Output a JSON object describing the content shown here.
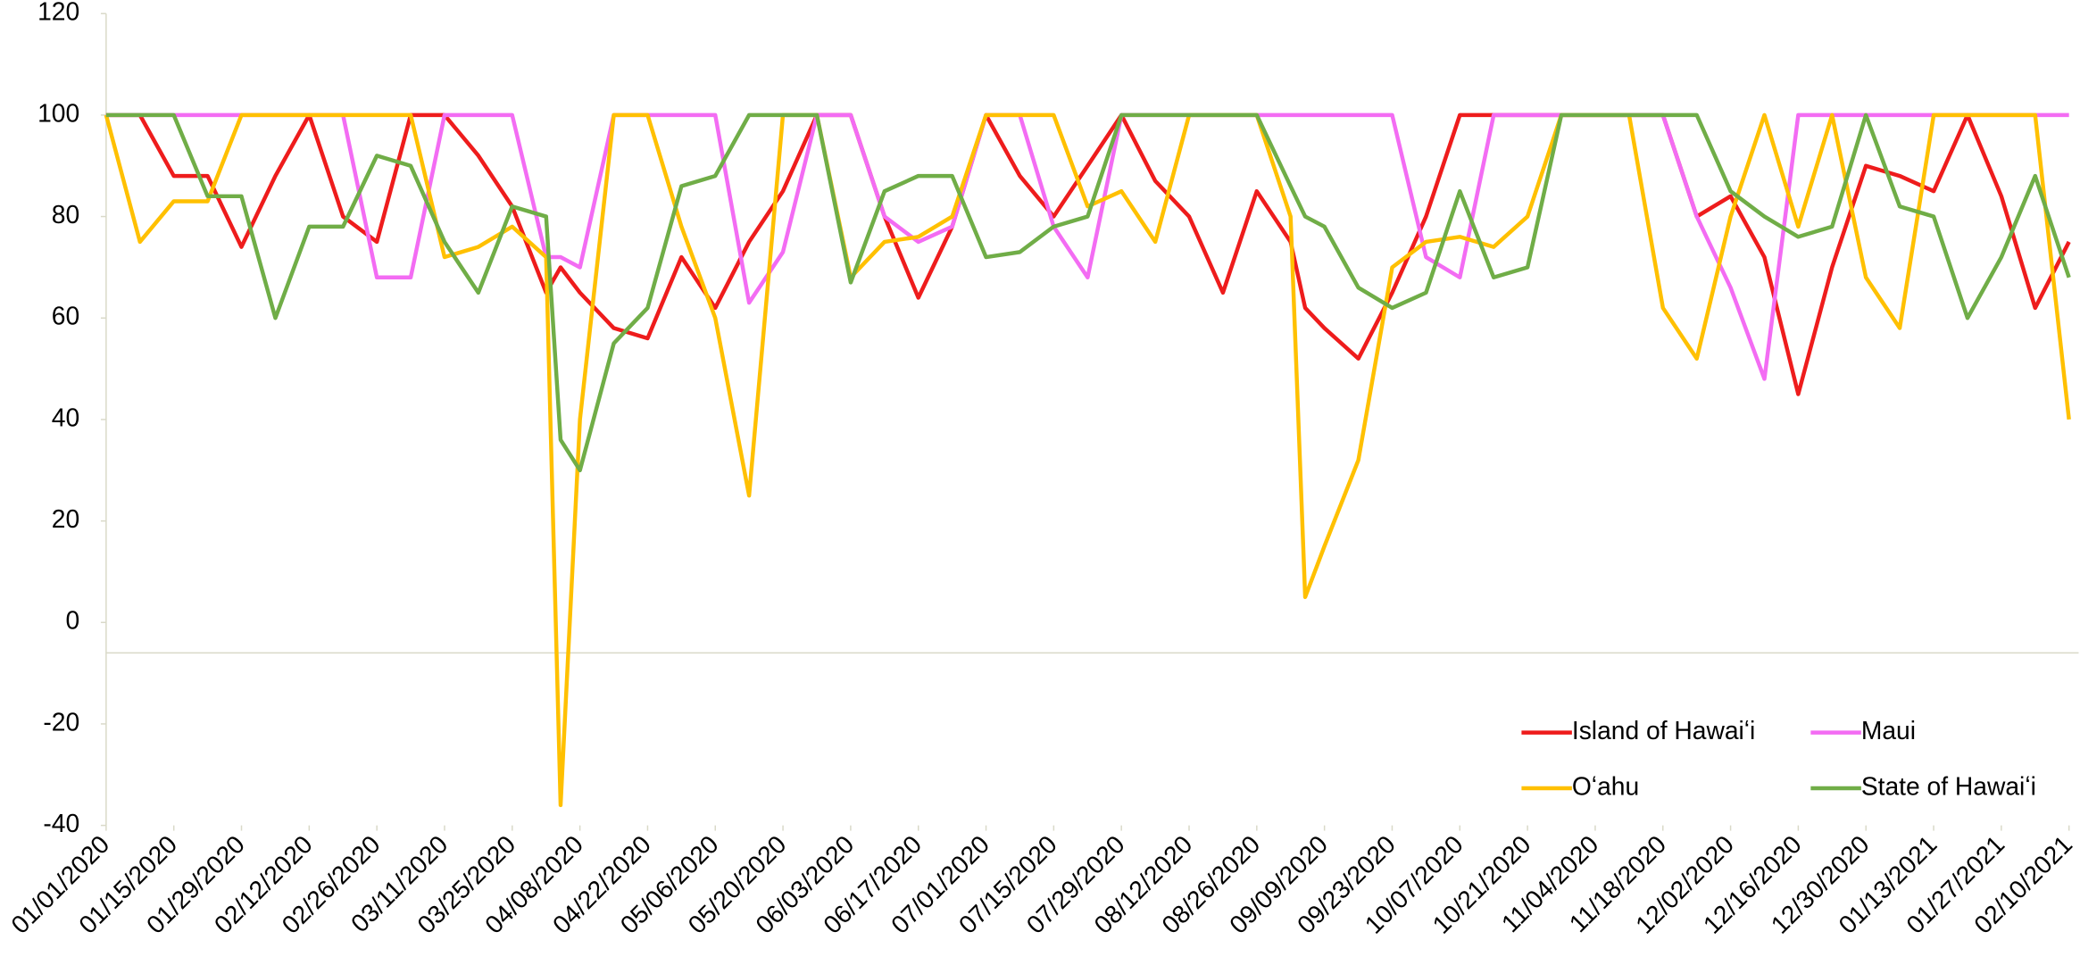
{
  "chart_data": {
    "type": "line",
    "x": [
      "01/01/2020",
      "01/08/2020",
      "01/15/2020",
      "01/22/2020",
      "01/29/2020",
      "02/05/2020",
      "02/12/2020",
      "02/19/2020",
      "02/26/2020",
      "03/04/2020",
      "03/11/2020",
      "03/18/2020",
      "03/25/2020",
      "04/01/2020",
      "04/04/2020",
      "04/08/2020",
      "04/15/2020",
      "04/22/2020",
      "04/29/2020",
      "05/06/2020",
      "05/13/2020",
      "05/20/2020",
      "05/27/2020",
      "06/03/2020",
      "06/10/2020",
      "06/17/2020",
      "06/24/2020",
      "07/01/2020",
      "07/08/2020",
      "07/15/2020",
      "07/22/2020",
      "07/29/2020",
      "08/05/2020",
      "08/12/2020",
      "08/19/2020",
      "08/26/2020",
      "09/02/2020",
      "09/05/2020",
      "09/09/2020",
      "09/16/2020",
      "09/23/2020",
      "09/30/2020",
      "10/07/2020",
      "10/14/2020",
      "10/21/2020",
      "10/28/2020",
      "11/04/2020",
      "11/11/2020",
      "11/18/2020",
      "11/25/2020",
      "12/02/2020",
      "12/09/2020",
      "12/16/2020",
      "12/23/2020",
      "12/30/2020",
      "01/06/2021",
      "01/13/2021",
      "01/20/2021",
      "01/27/2021",
      "02/03/2021",
      "02/10/2021"
    ],
    "series": [
      {
        "name": "Island of Hawaiʻi",
        "color": "#ee1c1c",
        "values": [
          100,
          100,
          88,
          88,
          74,
          88,
          100,
          80,
          75,
          100,
          100,
          92,
          82,
          65,
          70,
          65,
          58,
          56,
          72,
          62,
          75,
          85,
          100,
          100,
          80,
          64,
          78,
          100,
          88,
          80,
          90,
          100,
          87,
          80,
          65,
          85,
          75,
          62,
          58,
          52,
          65,
          80,
          100,
          100,
          100,
          100,
          100,
          100,
          100,
          80,
          84,
          72,
          45,
          70,
          90,
          88,
          85,
          100,
          84,
          62,
          75
        ]
      },
      {
        "name": "Maui",
        "color": "#f36cf3",
        "values": [
          100,
          100,
          100,
          100,
          100,
          100,
          100,
          100,
          68,
          68,
          100,
          100,
          100,
          72,
          72,
          70,
          100,
          100,
          100,
          100,
          63,
          73,
          100,
          100,
          80,
          75,
          78,
          100,
          100,
          78,
          68,
          100,
          100,
          100,
          100,
          100,
          100,
          100,
          100,
          100,
          100,
          72,
          68,
          100,
          100,
          100,
          100,
          100,
          100,
          80,
          66,
          48,
          100,
          100,
          100,
          100,
          100,
          100,
          100,
          100,
          100
        ]
      },
      {
        "name": "Oʻahu",
        "color": "#ffc000",
        "values": [
          100,
          75,
          83,
          83,
          100,
          100,
          100,
          100,
          100,
          100,
          72,
          74,
          78,
          72,
          -36,
          40,
          100,
          100,
          78,
          60,
          25,
          100,
          100,
          68,
          75,
          76,
          80,
          100,
          100,
          100,
          82,
          85,
          75,
          100,
          100,
          100,
          80,
          5,
          15,
          32,
          70,
          75,
          76,
          74,
          80,
          100,
          100,
          100,
          62,
          52,
          80,
          100,
          78,
          100,
          68,
          58,
          100,
          100,
          100,
          100,
          40
        ]
      },
      {
        "name": "State of Hawaiʻi",
        "color": "#70ad47",
        "values": [
          100,
          100,
          100,
          84,
          84,
          60,
          78,
          78,
          92,
          90,
          75,
          65,
          82,
          80,
          36,
          30,
          55,
          62,
          86,
          88,
          100,
          100,
          100,
          67,
          85,
          88,
          88,
          72,
          73,
          78,
          80,
          100,
          100,
          100,
          100,
          100,
          86,
          80,
          78,
          66,
          62,
          65,
          85,
          68,
          70,
          100,
          100,
          100,
          100,
          100,
          85,
          80,
          76,
          78,
          100,
          82,
          80,
          60,
          72,
          88,
          68
        ]
      }
    ],
    "xlim": [
      "01/01/2020",
      "02/12/2021"
    ],
    "xticks": [
      "01/01/2020",
      "01/15/2020",
      "01/29/2020",
      "02/12/2020",
      "02/26/2020",
      "03/11/2020",
      "03/25/2020",
      "04/08/2020",
      "04/22/2020",
      "05/06/2020",
      "05/20/2020",
      "06/03/2020",
      "06/17/2020",
      "07/01/2020",
      "07/15/2020",
      "07/29/2020",
      "08/12/2020",
      "08/26/2020",
      "09/09/2020",
      "09/23/2020",
      "10/07/2020",
      "10/21/2020",
      "11/04/2020",
      "11/18/2020",
      "12/02/2020",
      "12/16/2020",
      "12/30/2020",
      "01/13/2021",
      "01/27/2021",
      "02/10/2021"
    ],
    "ylim": [
      -40,
      120
    ],
    "yticks": [
      120,
      100,
      80,
      60,
      40,
      20,
      0,
      -20,
      -40
    ],
    "baseline": -6,
    "grid": false,
    "legend": "lower right"
  }
}
